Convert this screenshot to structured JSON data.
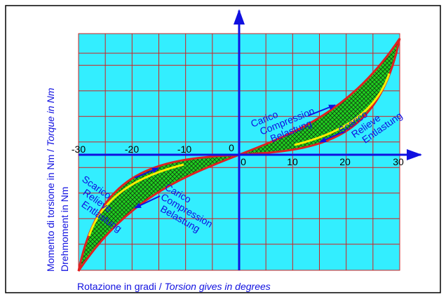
{
  "y_label": {
    "main": "Momento di torsione in Nm / ",
    "italic": "Torque in Nm",
    "line2": "Drehmoment in Nm"
  },
  "x_label": {
    "main": "Rotazione in gradi / ",
    "italic": "Torsion gives in degrees"
  },
  "x_ticks": [
    "-30",
    "-20",
    "-10",
    "0",
    "0",
    "10",
    "20",
    "30"
  ],
  "annotations": {
    "load_right": [
      "Carico",
      "Compression",
      "Belastung"
    ],
    "unload_right": [
      "Scarico",
      "Relieve",
      "Entlastung"
    ],
    "unload_left": [
      "Scarico",
      "Relieve",
      "Entlastung"
    ],
    "load_left": [
      "Carico",
      "Compression",
      "Belastung"
    ]
  }
}
